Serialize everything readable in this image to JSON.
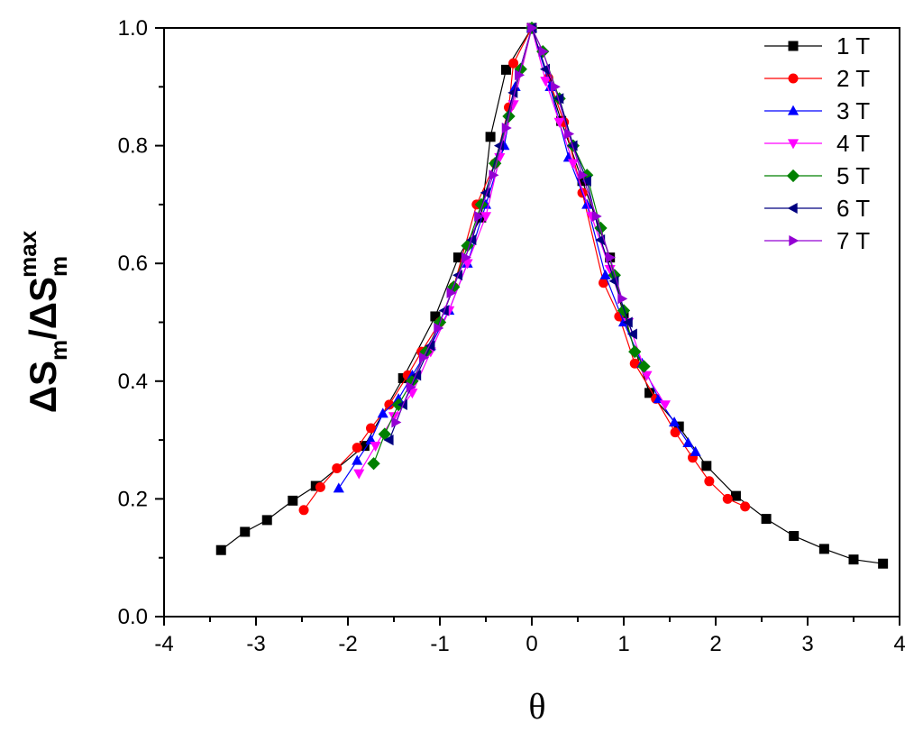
{
  "chart_data": {
    "type": "line",
    "xlabel": "θ",
    "ylabel": {
      "prefix": "ΔS",
      "sub": "m",
      "separator": "/ΔS",
      "sub2": "m",
      "sup2": "max"
    },
    "xlim": [
      -4,
      4
    ],
    "ylim": [
      0.0,
      1.0
    ],
    "xticks": [
      "-4",
      "-3",
      "-2",
      "-1",
      "0",
      "1",
      "2",
      "3",
      "4"
    ],
    "yticks": [
      "0.0",
      "0.2",
      "0.4",
      "0.6",
      "0.8",
      "1.0"
    ],
    "grid": false,
    "legend_position": "top-right",
    "series": [
      {
        "name": "1 T",
        "color": "#000000",
        "marker": "square",
        "points": [
          [
            -3.38,
            0.113
          ],
          [
            -3.12,
            0.144
          ],
          [
            -2.88,
            0.164
          ],
          [
            -2.6,
            0.197
          ],
          [
            -2.35,
            0.222
          ],
          [
            -1.82,
            0.29
          ],
          [
            -1.4,
            0.405
          ],
          [
            -1.05,
            0.51
          ],
          [
            -0.8,
            0.61
          ],
          [
            -0.55,
            0.678
          ],
          [
            -0.45,
            0.815
          ],
          [
            -0.28,
            0.929
          ],
          [
            0.0,
            1.0
          ],
          [
            0.32,
            0.842
          ],
          [
            0.55,
            0.74
          ],
          [
            0.85,
            0.61
          ],
          [
            1.0,
            0.51
          ],
          [
            1.28,
            0.38
          ],
          [
            1.6,
            0.323
          ],
          [
            1.9,
            0.256
          ],
          [
            2.22,
            0.205
          ],
          [
            2.55,
            0.166
          ],
          [
            2.85,
            0.137
          ],
          [
            3.18,
            0.115
          ],
          [
            3.5,
            0.097
          ],
          [
            3.82,
            0.09
          ]
        ]
      },
      {
        "name": "2 T",
        "color": "#ff0000",
        "marker": "circle",
        "points": [
          [
            -2.48,
            0.181
          ],
          [
            -2.3,
            0.22
          ],
          [
            -2.12,
            0.252
          ],
          [
            -1.9,
            0.287
          ],
          [
            -1.75,
            0.32
          ],
          [
            -1.55,
            0.36
          ],
          [
            -1.35,
            0.41
          ],
          [
            -1.2,
            0.45
          ],
          [
            -1.0,
            0.5
          ],
          [
            -0.85,
            0.56
          ],
          [
            -0.6,
            0.7
          ],
          [
            -0.4,
            0.77
          ],
          [
            -0.25,
            0.865
          ],
          [
            -0.2,
            0.94
          ],
          [
            0.0,
            1.0
          ],
          [
            0.18,
            0.915
          ],
          [
            0.35,
            0.84
          ],
          [
            0.55,
            0.72
          ],
          [
            0.78,
            0.567
          ],
          [
            0.95,
            0.51
          ],
          [
            1.12,
            0.43
          ],
          [
            1.35,
            0.37
          ],
          [
            1.56,
            0.313
          ],
          [
            1.75,
            0.27
          ],
          [
            1.93,
            0.23
          ],
          [
            2.13,
            0.2
          ],
          [
            2.32,
            0.187
          ]
        ]
      },
      {
        "name": "3 T",
        "color": "#0000ff",
        "marker": "triangle-up",
        "points": [
          [
            -2.1,
            0.218
          ],
          [
            -1.9,
            0.265
          ],
          [
            -1.75,
            0.3
          ],
          [
            -1.62,
            0.345
          ],
          [
            -1.45,
            0.37
          ],
          [
            -1.3,
            0.41
          ],
          [
            -1.1,
            0.46
          ],
          [
            -0.9,
            0.52
          ],
          [
            -0.7,
            0.6
          ],
          [
            -0.5,
            0.7
          ],
          [
            -0.3,
            0.8
          ],
          [
            -0.18,
            0.9
          ],
          [
            0.0,
            1.0
          ],
          [
            0.2,
            0.9
          ],
          [
            0.4,
            0.78
          ],
          [
            0.6,
            0.7
          ],
          [
            0.8,
            0.58
          ],
          [
            1.0,
            0.5
          ],
          [
            1.2,
            0.43
          ],
          [
            1.38,
            0.37
          ],
          [
            1.55,
            0.33
          ],
          [
            1.7,
            0.295
          ],
          [
            1.78,
            0.28
          ]
        ]
      },
      {
        "name": "4 T",
        "color": "#ff00ff",
        "marker": "triangle-down",
        "points": [
          [
            -1.88,
            0.243
          ],
          [
            -1.7,
            0.29
          ],
          [
            -1.5,
            0.34
          ],
          [
            -1.3,
            0.38
          ],
          [
            -1.1,
            0.45
          ],
          [
            -0.9,
            0.52
          ],
          [
            -0.7,
            0.6
          ],
          [
            -0.5,
            0.68
          ],
          [
            -0.35,
            0.78
          ],
          [
            -0.2,
            0.87
          ],
          [
            0.0,
            1.0
          ],
          [
            0.15,
            0.91
          ],
          [
            0.3,
            0.84
          ],
          [
            0.45,
            0.77
          ],
          [
            0.65,
            0.68
          ],
          [
            0.85,
            0.59
          ],
          [
            1.05,
            0.5
          ],
          [
            1.25,
            0.41
          ],
          [
            1.45,
            0.36
          ]
        ]
      },
      {
        "name": "5 T",
        "color": "#008000",
        "marker": "diamond",
        "points": [
          [
            -1.72,
            0.26
          ],
          [
            -1.6,
            0.31
          ],
          [
            -1.45,
            0.36
          ],
          [
            -1.3,
            0.4
          ],
          [
            -1.15,
            0.45
          ],
          [
            -1.0,
            0.5
          ],
          [
            -0.85,
            0.56
          ],
          [
            -0.7,
            0.63
          ],
          [
            -0.55,
            0.7
          ],
          [
            -0.4,
            0.77
          ],
          [
            -0.25,
            0.85
          ],
          [
            -0.12,
            0.93
          ],
          [
            0.0,
            1.0
          ],
          [
            0.12,
            0.96
          ],
          [
            0.3,
            0.88
          ],
          [
            0.45,
            0.8
          ],
          [
            0.6,
            0.75
          ],
          [
            0.75,
            0.66
          ],
          [
            0.9,
            0.58
          ],
          [
            1.0,
            0.52
          ],
          [
            1.12,
            0.45
          ],
          [
            1.22,
            0.425
          ]
        ]
      },
      {
        "name": "6 T",
        "color": "#000080",
        "marker": "triangle-left",
        "points": [
          [
            -1.55,
            0.3
          ],
          [
            -1.4,
            0.36
          ],
          [
            -1.25,
            0.41
          ],
          [
            -1.1,
            0.46
          ],
          [
            -0.95,
            0.52
          ],
          [
            -0.8,
            0.58
          ],
          [
            -0.65,
            0.64
          ],
          [
            -0.5,
            0.72
          ],
          [
            -0.35,
            0.8
          ],
          [
            -0.2,
            0.89
          ],
          [
            0.0,
            1.0
          ],
          [
            0.15,
            0.93
          ],
          [
            0.3,
            0.88
          ],
          [
            0.45,
            0.8
          ],
          [
            0.6,
            0.74
          ],
          [
            0.75,
            0.64
          ],
          [
            0.9,
            0.57
          ],
          [
            1.05,
            0.5
          ],
          [
            1.1,
            0.48
          ]
        ]
      },
      {
        "name": "7 T",
        "color": "#9400d3",
        "marker": "triangle-right",
        "points": [
          [
            -1.48,
            0.33
          ],
          [
            -1.32,
            0.39
          ],
          [
            -1.18,
            0.44
          ],
          [
            -1.02,
            0.49
          ],
          [
            -0.88,
            0.55
          ],
          [
            -0.72,
            0.61
          ],
          [
            -0.58,
            0.68
          ],
          [
            -0.42,
            0.75
          ],
          [
            -0.28,
            0.83
          ],
          [
            -0.14,
            0.92
          ],
          [
            0.0,
            1.0
          ],
          [
            0.12,
            0.96
          ],
          [
            0.25,
            0.9
          ],
          [
            0.4,
            0.82
          ],
          [
            0.55,
            0.75
          ],
          [
            0.7,
            0.68
          ],
          [
            0.85,
            0.61
          ],
          [
            0.98,
            0.54
          ]
        ]
      }
    ]
  }
}
